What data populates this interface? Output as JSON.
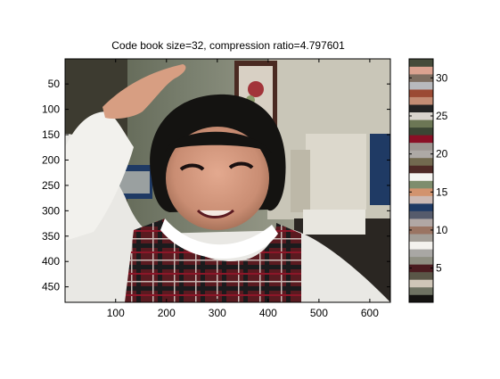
{
  "chart_data": {
    "type": "heatmap",
    "title": "Code book size=32, compression ratio=4.797601",
    "xlabel": "",
    "ylabel": "",
    "image": {
      "x_ticks": [
        100,
        200,
        300,
        400,
        500,
        600
      ],
      "y_ticks": [
        50,
        100,
        150,
        200,
        250,
        300,
        350,
        400,
        450
      ],
      "xlim": [
        0.5,
        640.5
      ],
      "ylim": [
        480.5,
        0.5
      ],
      "y_direction": "reversed",
      "content": "photo"
    },
    "colorbar": {
      "ticks": [
        5,
        10,
        15,
        20,
        25,
        30
      ],
      "range": [
        0.5,
        32.5
      ],
      "code_book_size": 32,
      "colors": [
        "#141311",
        "#6e7262",
        "#cfc6b8",
        "#5a5647",
        "#4a1b1f",
        "#8f8f82",
        "#a9a7a4",
        "#f4f2ee",
        "#a39e97",
        "#9a7462",
        "#b1a7a4",
        "#565b6c",
        "#1f3a64",
        "#ccb9b3",
        "#d2936e",
        "#7e8d6d",
        "#f5f4f0",
        "#4f2a26",
        "#72694f",
        "#aea9a6",
        "#9c9591",
        "#8a0f25",
        "#3b4634",
        "#6c7755",
        "#d8d3cd",
        "#232324",
        "#c38c74",
        "#9b4a34",
        "#b8b9bd",
        "#7d6d60",
        "#dba290",
        "#454b3a"
      ]
    }
  }
}
